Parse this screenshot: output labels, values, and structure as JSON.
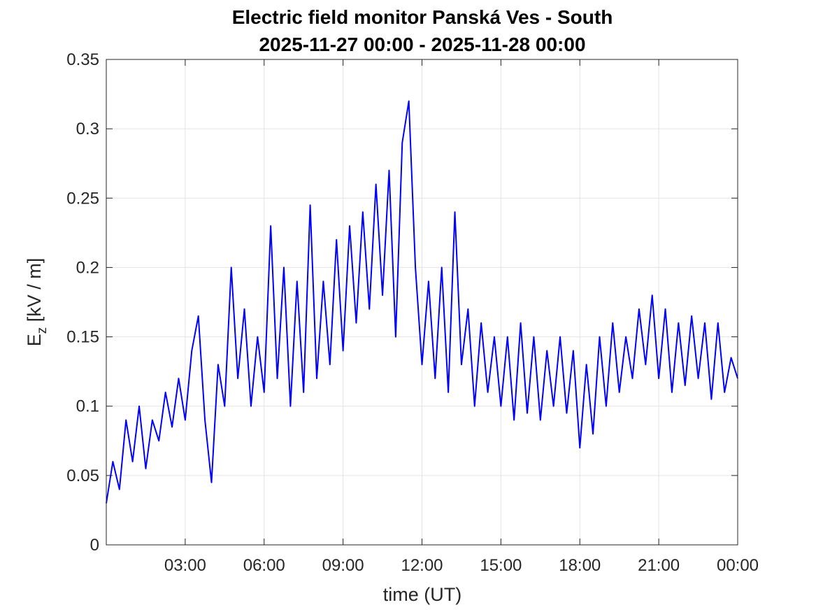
{
  "chart_data": {
    "type": "line",
    "title": "Electric field monitor Panská Ves - South",
    "subtitle": "2025-11-27 00:00 - 2025-11-28 00:00",
    "xlabel": "time (UT)",
    "ylabel": [
      "E",
      "z",
      " [kV / m]"
    ],
    "color": "#0000ff",
    "grid": true,
    "xlim": [
      0,
      24
    ],
    "xticks": [
      {
        "value": 3,
        "label": "03:00"
      },
      {
        "value": 6,
        "label": "06:00"
      },
      {
        "value": 9,
        "label": "09:00"
      },
      {
        "value": 12,
        "label": "12:00"
      },
      {
        "value": 15,
        "label": "15:00"
      },
      {
        "value": 18,
        "label": "18:00"
      },
      {
        "value": 21,
        "label": "21:00"
      },
      {
        "value": 24,
        "label": "00:00"
      }
    ],
    "ylim": [
      0,
      0.35
    ],
    "yticks": [
      0,
      0.05,
      0.1,
      0.15,
      0.2,
      0.25,
      0.3,
      0.35
    ],
    "x": [
      0,
      0.25,
      0.5,
      0.75,
      1,
      1.25,
      1.5,
      1.75,
      2,
      2.25,
      2.5,
      2.75,
      3,
      3.25,
      3.5,
      3.75,
      4,
      4.25,
      4.5,
      4.75,
      5,
      5.25,
      5.5,
      5.75,
      6,
      6.25,
      6.5,
      6.75,
      7,
      7.25,
      7.5,
      7.75,
      8,
      8.25,
      8.5,
      8.75,
      9,
      9.25,
      9.5,
      9.75,
      10,
      10.25,
      10.5,
      10.75,
      11,
      11.25,
      11.5,
      11.75,
      12,
      12.25,
      12.5,
      12.75,
      13,
      13.25,
      13.5,
      13.75,
      14,
      14.25,
      14.5,
      14.75,
      15,
      15.25,
      15.5,
      15.75,
      16,
      16.25,
      16.5,
      16.75,
      17,
      17.25,
      17.5,
      17.75,
      18,
      18.25,
      18.5,
      18.75,
      19,
      19.25,
      19.5,
      19.75,
      20,
      20.25,
      20.5,
      20.75,
      21,
      21.25,
      21.5,
      21.75,
      22,
      22.25,
      22.5,
      22.75,
      23,
      23.25,
      23.5,
      23.75,
      24
    ],
    "values": [
      0.03,
      0.06,
      0.04,
      0.09,
      0.06,
      0.1,
      0.055,
      0.09,
      0.075,
      0.11,
      0.085,
      0.12,
      0.09,
      0.14,
      0.165,
      0.09,
      0.045,
      0.13,
      0.1,
      0.2,
      0.12,
      0.17,
      0.1,
      0.15,
      0.11,
      0.23,
      0.12,
      0.2,
      0.1,
      0.19,
      0.11,
      0.245,
      0.12,
      0.19,
      0.13,
      0.22,
      0.14,
      0.23,
      0.16,
      0.24,
      0.17,
      0.26,
      0.18,
      0.27,
      0.15,
      0.29,
      0.32,
      0.2,
      0.13,
      0.19,
      0.12,
      0.2,
      0.11,
      0.24,
      0.13,
      0.17,
      0.1,
      0.16,
      0.11,
      0.15,
      0.1,
      0.15,
      0.09,
      0.16,
      0.095,
      0.15,
      0.09,
      0.14,
      0.1,
      0.15,
      0.095,
      0.14,
      0.07,
      0.13,
      0.08,
      0.15,
      0.1,
      0.16,
      0.11,
      0.15,
      0.12,
      0.17,
      0.13,
      0.18,
      0.12,
      0.17,
      0.11,
      0.16,
      0.115,
      0.165,
      0.12,
      0.16,
      0.105,
      0.16,
      0.11,
      0.135,
      0.12
    ]
  }
}
